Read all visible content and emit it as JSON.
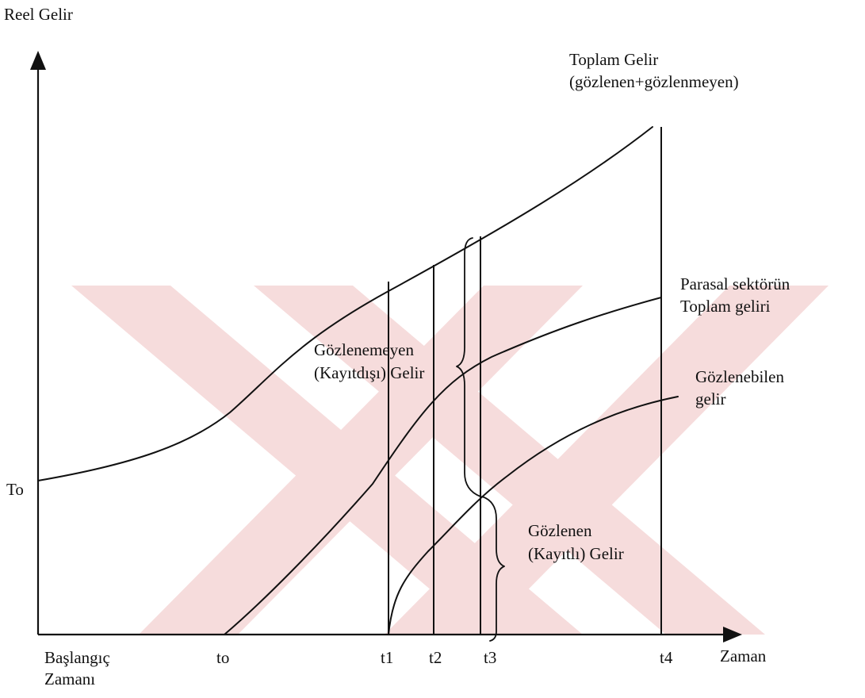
{
  "axes": {
    "y_label": "Reel Gelir",
    "x_label": "Zaman",
    "origin_y_label": "To"
  },
  "x_ticks": {
    "start_line1": "Başlangıç",
    "start_line2": "Zamanı",
    "t0": "to",
    "t1": "t1",
    "t2": "t2",
    "t3": "t3",
    "t4": "t4"
  },
  "curves": {
    "total_line1": "Toplam Gelir",
    "total_line2": "(gözlenen+gözlenmeyen)",
    "monetary_line1": "Parasal sektörün",
    "monetary_line2": "Toplam geliri",
    "observable_line1": "Gözlenebilen",
    "observable_line2": "gelir"
  },
  "braces": {
    "unobserved_line1": "Gözlenemeyen",
    "unobserved_line2": "(Kayıtdışı) Gelir",
    "observed_line1": "Gözlenen",
    "observed_line2": "(Kayıtlı) Gelir"
  },
  "colors": {
    "ink": "#111111",
    "watermark": "#f6dcdc"
  }
}
